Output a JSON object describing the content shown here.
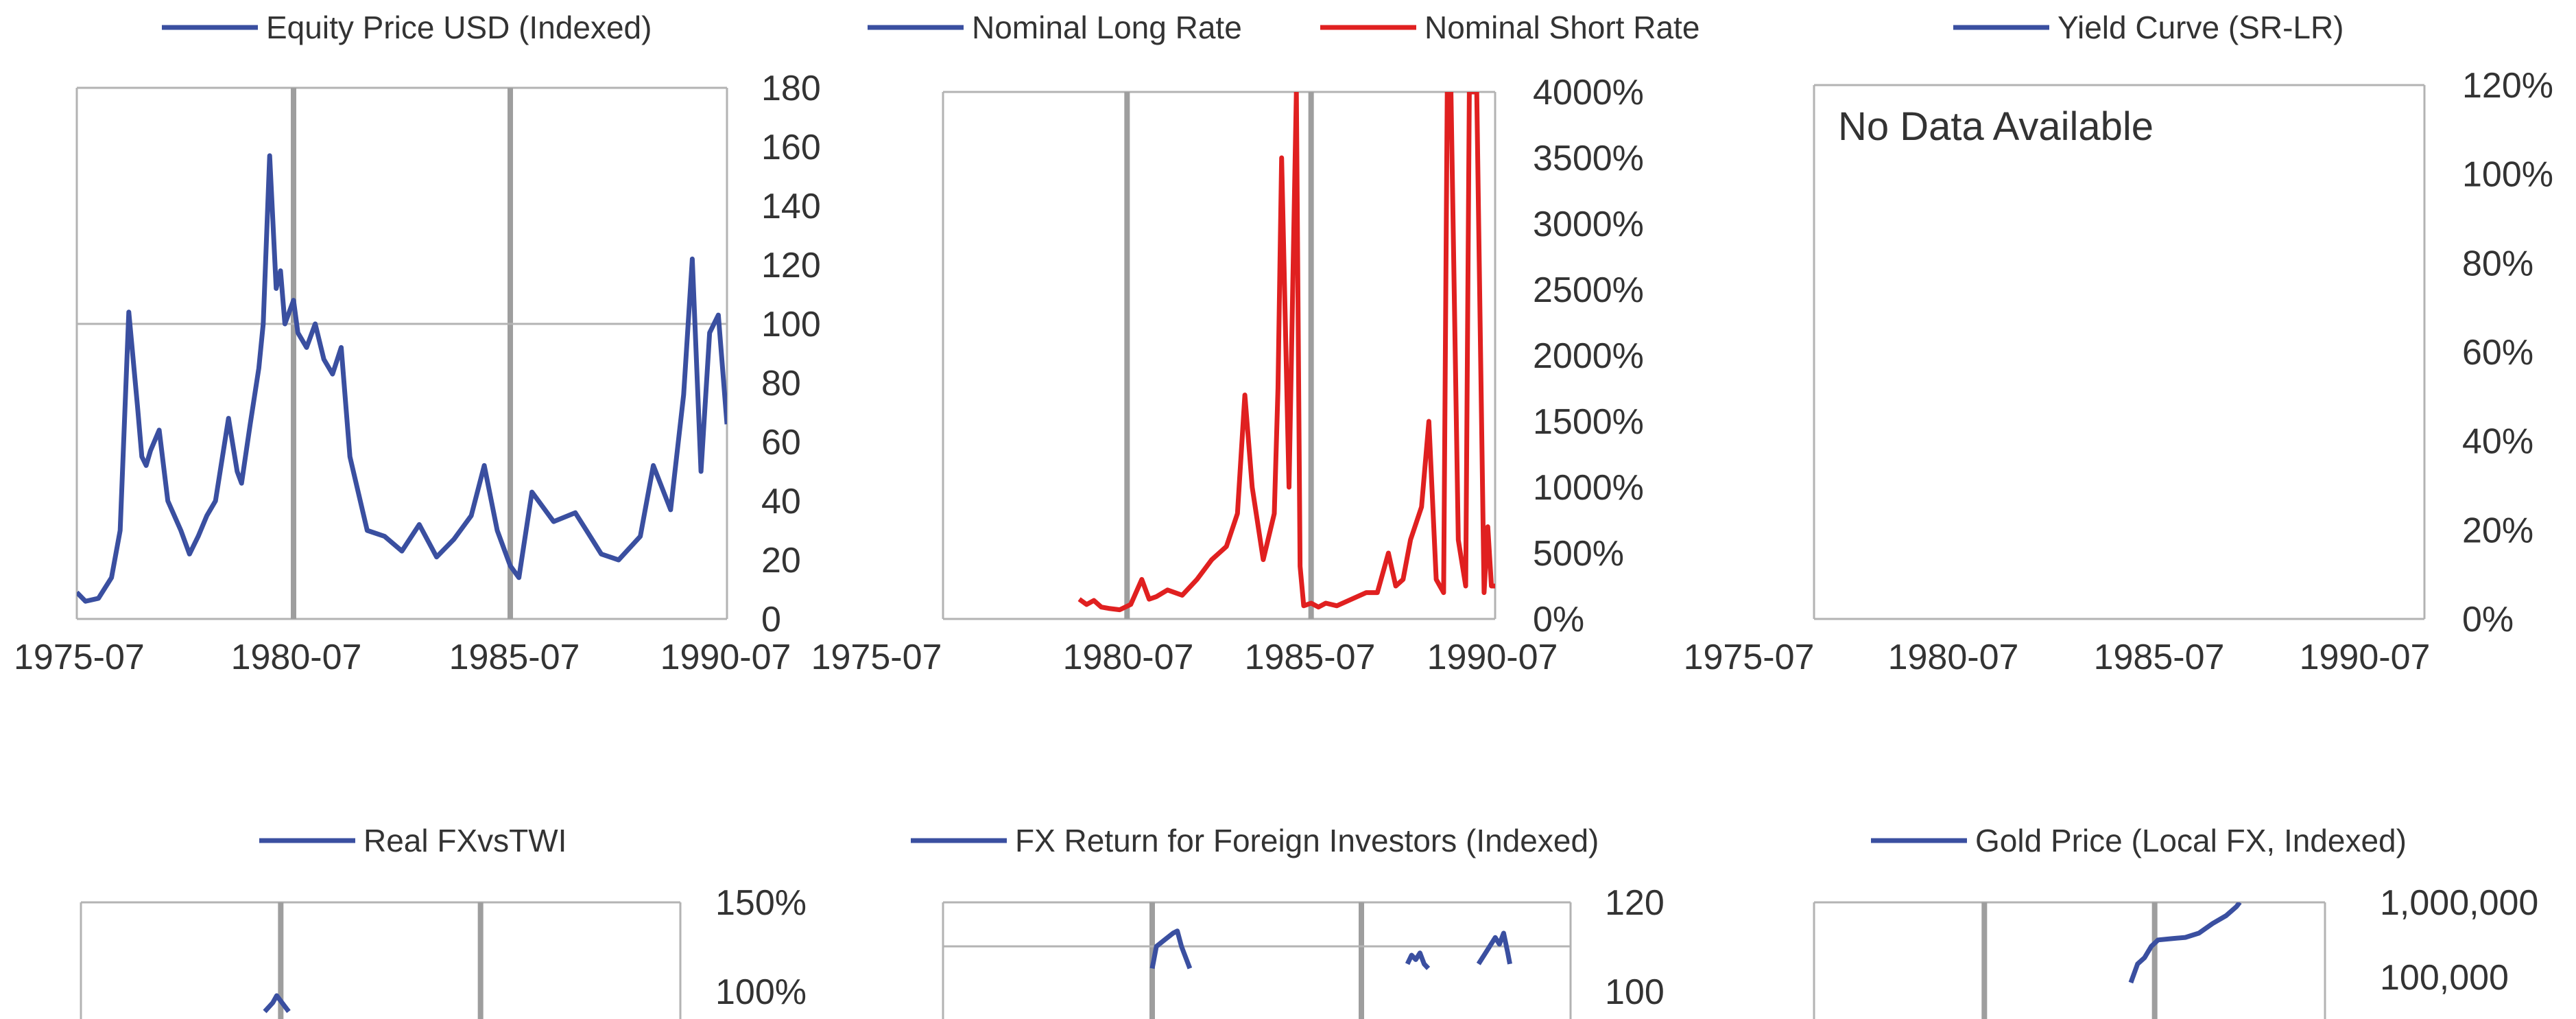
{
  "colors": {
    "blue": "#3a4fa0",
    "red": "#e02020",
    "axis": "#b3b3b3",
    "vline": "#9e9e9e",
    "text": "#333333"
  },
  "chart_data": [
    {
      "type": "line",
      "legend": [
        "Equity Price USD (Indexed)"
      ],
      "xlabel": "",
      "ylabel": "",
      "x_tick_labels": [
        "1975-07",
        "1980-07",
        "1985-07",
        "1990-07"
      ],
      "y_tick_labels": [
        "0",
        "20",
        "40",
        "60",
        "80",
        "100",
        "120",
        "140",
        "160",
        "180"
      ],
      "xlim": [
        1975.5,
        1990.5
      ],
      "ylim": [
        0,
        180
      ],
      "reference_line_y": 100,
      "event_lines_x": [
        1980.5,
        1985.5
      ],
      "series": [
        {
          "name": "Equity Price USD (Indexed)",
          "color": "#3a4fa0",
          "x": [
            1975.5,
            1975.7,
            1976.0,
            1976.3,
            1976.5,
            1976.7,
            1976.9,
            1977.0,
            1977.1,
            1977.2,
            1977.4,
            1977.6,
            1977.9,
            1978.1,
            1978.3,
            1978.5,
            1978.7,
            1979.0,
            1979.2,
            1979.3,
            1979.5,
            1979.7,
            1979.8,
            1979.95,
            1980.1,
            1980.2,
            1980.3,
            1980.5,
            1980.6,
            1980.8,
            1981.0,
            1981.2,
            1981.4,
            1981.6,
            1981.8,
            1982.2,
            1982.6,
            1983.0,
            1983.4,
            1983.8,
            1984.2,
            1984.6,
            1984.9,
            1985.2,
            1985.5,
            1985.7,
            1986.0,
            1986.5,
            1987.0,
            1987.3,
            1987.6,
            1988.0,
            1988.5,
            1988.8,
            1989.2,
            1989.5,
            1989.7,
            1989.9,
            1990.1,
            1990.3,
            1990.5
          ],
          "y": [
            9,
            6,
            7,
            14,
            30,
            104,
            72,
            55,
            52,
            57,
            64,
            40,
            30,
            22,
            28,
            35,
            40,
            68,
            50,
            46,
            66,
            85,
            100,
            157,
            112,
            118,
            100,
            108,
            97,
            92,
            100,
            88,
            83,
            92,
            55,
            30,
            28,
            23,
            32,
            21,
            27,
            35,
            52,
            30,
            18,
            14,
            43,
            33,
            36,
            29,
            22,
            20,
            28,
            52,
            37,
            76,
            122,
            50,
            97,
            103,
            66
          ]
        }
      ]
    },
    {
      "type": "line",
      "legend": [
        "Nominal Long Rate",
        "Nominal Short Rate"
      ],
      "xlabel": "",
      "ylabel": "",
      "x_tick_labels": [
        "1975-07",
        "1980-07",
        "1985-07",
        "1990-07"
      ],
      "y_tick_labels": [
        "0%",
        "500%",
        "1000%",
        "1500%",
        "2000%",
        "2500%",
        "3000%",
        "3500%",
        "4000%"
      ],
      "xlim": [
        1975.5,
        1990.5
      ],
      "ylim": [
        0,
        4000
      ],
      "event_lines_x": [
        1980.5,
        1985.5
      ],
      "series": [
        {
          "name": "Nominal Long Rate",
          "color": "#3a4fa0",
          "x": [],
          "y": []
        },
        {
          "name": "Nominal Short Rate",
          "color": "#e02020",
          "x": [
            1979.2,
            1979.4,
            1979.6,
            1979.8,
            1980.0,
            1980.3,
            1980.6,
            1980.9,
            1981.1,
            1981.3,
            1981.6,
            1982.0,
            1982.4,
            1982.8,
            1983.2,
            1983.5,
            1983.7,
            1983.9,
            1984.2,
            1984.5,
            1984.6,
            1984.7,
            1984.9,
            1985.1,
            1985.2,
            1985.3,
            1985.5,
            1985.7,
            1985.9,
            1986.2,
            1986.6,
            1987.0,
            1987.3,
            1987.6,
            1987.8,
            1988.0,
            1988.2,
            1988.5,
            1988.7,
            1988.9,
            1989.1,
            1989.2,
            1989.3,
            1989.5,
            1989.7,
            1989.8,
            1990.0,
            1990.2,
            1990.3,
            1990.4,
            1990.5
          ],
          "y": [
            150,
            110,
            140,
            90,
            80,
            70,
            110,
            300,
            150,
            170,
            220,
            180,
            300,
            450,
            550,
            800,
            1700,
            1000,
            450,
            800,
            1750,
            3500,
            1000,
            4000,
            400,
            100,
            120,
            90,
            120,
            100,
            150,
            200,
            200,
            500,
            250,
            300,
            600,
            850,
            1500,
            300,
            200,
            4000,
            4000,
            600,
            250,
            4000,
            4000,
            200,
            700,
            250,
            250
          ]
        }
      ]
    },
    {
      "type": "line",
      "legend": [
        "Yield Curve (SR-LR)"
      ],
      "xlabel": "",
      "ylabel": "",
      "x_tick_labels": [
        "1975-07",
        "1980-07",
        "1985-07",
        "1990-07"
      ],
      "y_tick_labels": [
        "0%",
        "20%",
        "40%",
        "60%",
        "80%",
        "100%",
        "120%"
      ],
      "xlim": [
        1975.5,
        1990.5
      ],
      "ylim": [
        0,
        120
      ],
      "annotation": "No Data Available",
      "series": [
        {
          "name": "Yield Curve (SR-LR)",
          "color": "#3a4fa0",
          "x": [],
          "y": []
        }
      ]
    },
    {
      "type": "line",
      "legend": [
        "Real FXvsTWI"
      ],
      "xlabel": "",
      "ylabel": "",
      "y_tick_labels": [
        "150%",
        "100%"
      ],
      "xlim": [
        1975.5,
        1990.5
      ],
      "ylim": [
        0,
        150
      ],
      "event_lines_x": [
        1980.5,
        1985.5
      ],
      "series": [
        {
          "name": "Real FXvsTWI",
          "color": "#3a4fa0",
          "x": [
            1980.1,
            1980.3,
            1980.4,
            1980.5,
            1980.7
          ],
          "y": [
            88,
            93,
            97,
            94,
            88
          ]
        }
      ]
    },
    {
      "type": "line",
      "legend": [
        "FX Return for Foreign Investors (Indexed)"
      ],
      "xlabel": "",
      "ylabel": "",
      "y_tick_labels": [
        "120",
        "100"
      ],
      "xlim": [
        1975.5,
        1990.5
      ],
      "ylim": [
        0,
        120
      ],
      "reference_line_y": 100,
      "event_lines_x": [
        1980.5,
        1985.5
      ],
      "series": [
        {
          "name": "FX Return for Foreign Investors (Indexed)",
          "color": "#3a4fa0",
          "x": [
            1980.5,
            1980.6,
            1980.8,
            1981.0,
            1981.1,
            1981.2,
            1981.3,
            1981.4
          ],
          "y": [
            90,
            100,
            103,
            106,
            107,
            100,
            95,
            90
          ]
        },
        {
          "name": "FX Return for Foreign Investors (Indexed)",
          "color": "#3a4fa0",
          "x": [
            1986.6,
            1986.7,
            1986.8,
            1986.9,
            1987.0,
            1987.1
          ],
          "y": [
            92,
            96,
            94,
            97,
            92,
            90
          ]
        },
        {
          "name": "FX Return for Foreign Investors (Indexed)",
          "color": "#3a4fa0",
          "x": [
            1988.3,
            1988.5,
            1988.7,
            1988.8,
            1988.9,
            1989.0,
            1989.05
          ],
          "y": [
            92,
            98,
            104,
            101,
            106,
            97,
            92
          ]
        }
      ]
    },
    {
      "type": "line",
      "legend": [
        "Gold Price (Local FX, Indexed)"
      ],
      "xlabel": "",
      "ylabel": "",
      "y_tick_labels": [
        "1,000,000",
        "100,000"
      ],
      "y_scale": "log",
      "xlim": [
        1975.5,
        1990.5
      ],
      "ylim": [
        1,
        1000000
      ],
      "event_lines_x": [
        1980.5,
        1985.5
      ],
      "series": [
        {
          "name": "Gold Price (Local FX, Indexed)",
          "color": "#3a4fa0",
          "x": [
            1984.8,
            1985.0,
            1985.2,
            1985.4,
            1985.6,
            1986.0,
            1986.4,
            1986.8,
            1987.2,
            1987.6,
            1987.9,
            1988.0
          ],
          "y": [
            15000,
            40000,
            55000,
            100000,
            140000,
            150000,
            160000,
            200000,
            330000,
            500000,
            800000,
            1000000
          ]
        }
      ]
    }
  ]
}
